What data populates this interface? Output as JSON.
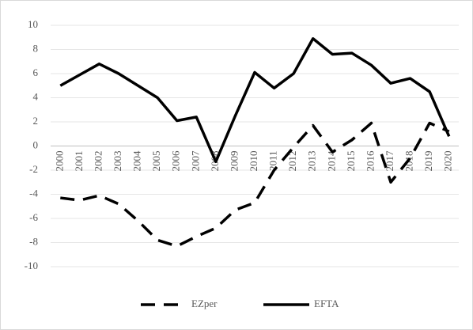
{
  "chart_data": {
    "type": "line",
    "categories": [
      "2000",
      "2001",
      "2002",
      "2003",
      "2004",
      "2005",
      "2006",
      "2007",
      "2008",
      "2009",
      "2010",
      "2011",
      "2012",
      "2013",
      "2014",
      "2015",
      "2016",
      "2017",
      "2018",
      "2019",
      "2020"
    ],
    "series": [
      {
        "name": "EZper",
        "color": "#000000",
        "dash": true,
        "values": [
          -4.3,
          -4.5,
          -4.1,
          -4.8,
          -6.2,
          -7.8,
          -8.3,
          -7.5,
          -6.8,
          -5.3,
          -4.7,
          -2.0,
          -0.1,
          1.7,
          -0.5,
          0.5,
          1.9,
          -3.0,
          -1.0,
          1.9,
          1.2
        ]
      },
      {
        "name": "EFTA",
        "color": "#000000",
        "dash": false,
        "values": [
          5.0,
          5.9,
          6.8,
          6.0,
          5.0,
          4.0,
          2.1,
          2.4,
          -1.3,
          2.5,
          6.1,
          4.8,
          6.0,
          8.9,
          7.6,
          7.7,
          6.7,
          5.2,
          5.6,
          4.5,
          0.8
        ]
      }
    ],
    "ylim": [
      -10,
      10
    ],
    "yticks": [
      -10,
      -8,
      -6,
      -4,
      -2,
      0,
      2,
      4,
      6,
      8,
      10
    ],
    "grid": true,
    "legend": "bottom"
  }
}
